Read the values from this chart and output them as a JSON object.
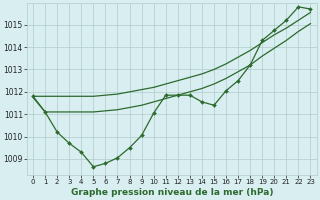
{
  "hours": [
    0,
    1,
    2,
    3,
    4,
    5,
    6,
    7,
    8,
    9,
    10,
    11,
    12,
    13,
    14,
    15,
    16,
    17,
    18,
    19,
    20,
    21,
    22,
    23
  ],
  "trend1": [
    1011.8,
    1011.8,
    1011.8,
    1011.8,
    1011.8,
    1011.8,
    1011.85,
    1011.9,
    1012.0,
    1012.1,
    1012.2,
    1012.35,
    1012.5,
    1012.65,
    1012.8,
    1013.0,
    1013.25,
    1013.55,
    1013.85,
    1014.2,
    1014.55,
    1014.85,
    1015.2,
    1015.55
  ],
  "trend2": [
    1011.75,
    1011.1,
    1011.1,
    1011.1,
    1011.1,
    1011.1,
    1011.15,
    1011.2,
    1011.3,
    1011.4,
    1011.55,
    1011.7,
    1011.85,
    1012.0,
    1012.15,
    1012.35,
    1012.6,
    1012.9,
    1013.2,
    1013.6,
    1013.95,
    1014.3,
    1014.7,
    1015.05
  ],
  "measured": [
    1011.8,
    1011.1,
    1010.2,
    1009.7,
    1009.3,
    1008.65,
    1008.8,
    1009.05,
    1009.5,
    1010.05,
    1011.05,
    1011.85,
    1011.85,
    1011.85,
    1011.55,
    1011.4,
    1012.05,
    1012.5,
    1013.2,
    1014.3,
    1014.75,
    1015.2,
    1015.8,
    1015.7
  ],
  "background_color": "#d8eef0",
  "line_color": "#2d6a2d",
  "grid_color": "#b0cccc",
  "xlabel": "Graphe pression niveau de la mer (hPa)",
  "ylim_min": 1008.3,
  "ylim_max": 1015.95,
  "yticks": [
    1009,
    1010,
    1011,
    1012,
    1013,
    1014,
    1015
  ],
  "xticks": [
    0,
    1,
    2,
    3,
    4,
    5,
    6,
    7,
    8,
    9,
    10,
    11,
    12,
    13,
    14,
    15,
    16,
    17,
    18,
    19,
    20,
    21,
    22,
    23
  ]
}
